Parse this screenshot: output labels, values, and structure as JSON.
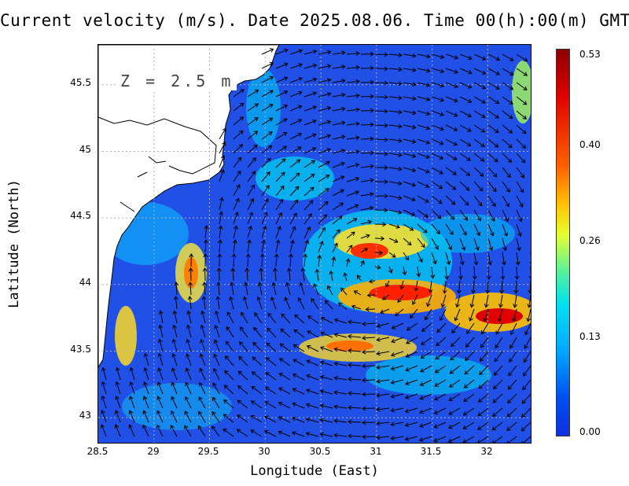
{
  "title": "Current velocity (m/s). Date 2025.08.06. Time 00(h):00(m) GMT",
  "depth_label": "Z = 2.5 m",
  "x_axis": {
    "label": "Longitude (East)",
    "ticks": [
      "28.5",
      "29",
      "29.5",
      "30",
      "30.5",
      "31",
      "31.5",
      "32"
    ],
    "range": [
      28.5,
      32.4
    ]
  },
  "y_axis": {
    "label": "Latitude (North)",
    "ticks": [
      "43",
      "43.5",
      "44",
      "44.5",
      "45",
      "45.5"
    ],
    "range": [
      42.8,
      45.8
    ]
  },
  "colorbar": {
    "ticks": [
      "0.53",
      "0.40",
      "0.26",
      "0.13",
      "0.00"
    ],
    "min": 0.0,
    "max": 0.53,
    "colors": [
      "#1030e0",
      "#0050f0",
      "#00a8ff",
      "#00e0f0",
      "#50f0a0",
      "#e6ff30",
      "#ffc000",
      "#ff6000",
      "#e00000",
      "#8b0000"
    ]
  },
  "land_color": "#ffffff",
  "grid": true
}
